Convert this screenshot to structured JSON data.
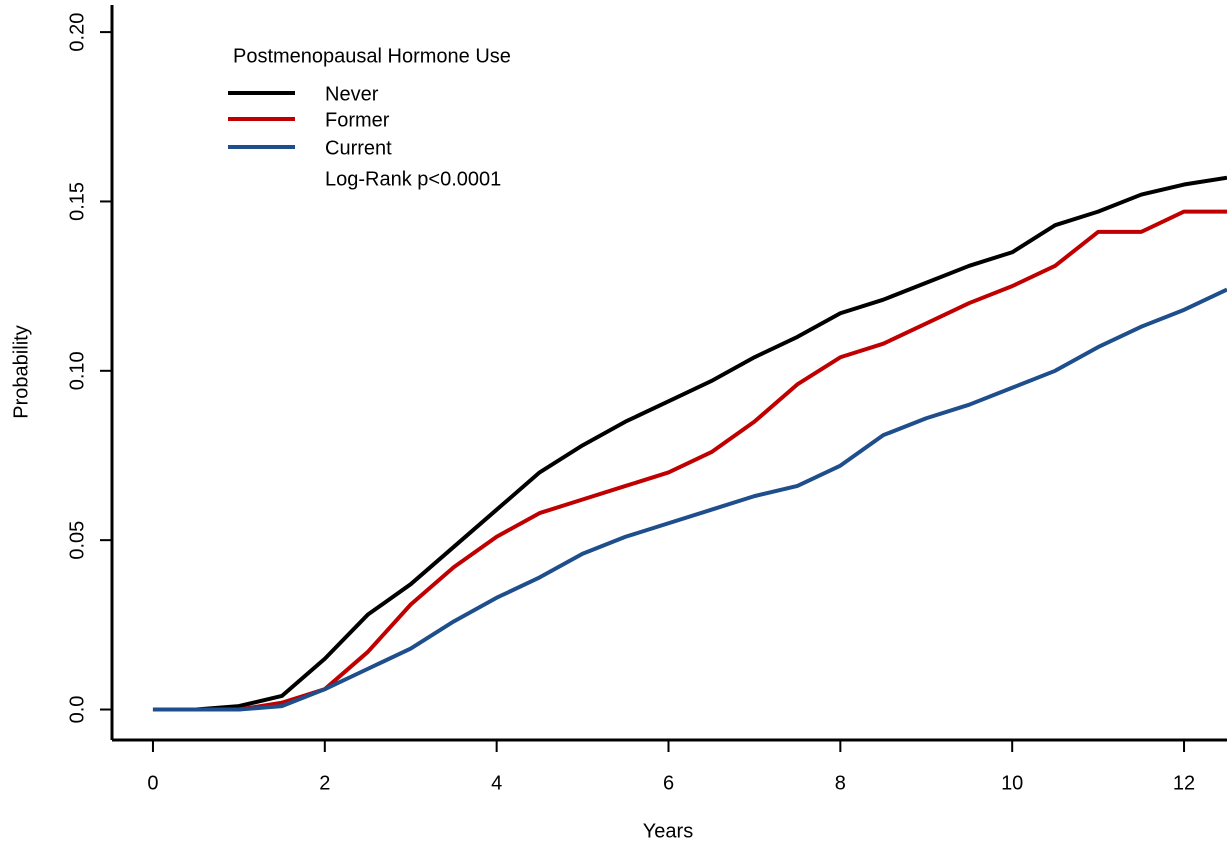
{
  "chart_data": {
    "type": "line",
    "x_label": "Years",
    "y_label": "Probability",
    "legend_title": "Postmenopausal Hormone Use",
    "annotation": "Log-Rank p<0.0001",
    "legend_position": "top-left",
    "grid": false,
    "xlim": [
      -0.5,
      12.5
    ],
    "ylim": [
      -0.009,
      0.208
    ],
    "xticks": [
      0,
      2,
      4,
      6,
      8,
      10,
      12
    ],
    "yticks": [
      {
        "value": 0,
        "label": "0.0"
      },
      0.05,
      {
        "value": 0.1,
        "label": "0.10"
      },
      0.15,
      {
        "value": 0.2,
        "label": "0.20"
      }
    ],
    "x": [
      0,
      0.5,
      1,
      1.5,
      2,
      2.5,
      3,
      3.5,
      4,
      4.5,
      5,
      5.5,
      6,
      6.5,
      7,
      7.5,
      8,
      8.5,
      9,
      9.5,
      10,
      10.5,
      11,
      11.5,
      12,
      12.5
    ],
    "series": [
      {
        "name": "Never",
        "color": "#000000",
        "values": [
          0,
          0,
          0.001,
          0.004,
          0.015,
          0.028,
          0.037,
          0.048,
          0.059,
          0.07,
          0.078,
          0.085,
          0.091,
          0.097,
          0.104,
          0.11,
          0.117,
          0.121,
          0.126,
          0.131,
          0.135,
          0.143,
          0.147,
          0.152,
          0.155,
          0.157
        ]
      },
      {
        "name": "Former",
        "color": "#c00000",
        "values": [
          0,
          0,
          0,
          0.002,
          0.006,
          0.017,
          0.031,
          0.042,
          0.051,
          0.058,
          0.062,
          0.066,
          0.07,
          0.076,
          0.085,
          0.096,
          0.104,
          0.108,
          0.114,
          0.12,
          0.125,
          0.131,
          0.141,
          0.141,
          0.147,
          0.147
        ]
      },
      {
        "name": "Current",
        "color": "#1f4e8c",
        "values": [
          0,
          0,
          0,
          0.001,
          0.006,
          0.012,
          0.018,
          0.026,
          0.033,
          0.039,
          0.046,
          0.051,
          0.055,
          0.059,
          0.063,
          0.066,
          0.072,
          0.081,
          0.086,
          0.09,
          0.095,
          0.1,
          0.107,
          0.113,
          0.118,
          0.124
        ]
      }
    ]
  }
}
